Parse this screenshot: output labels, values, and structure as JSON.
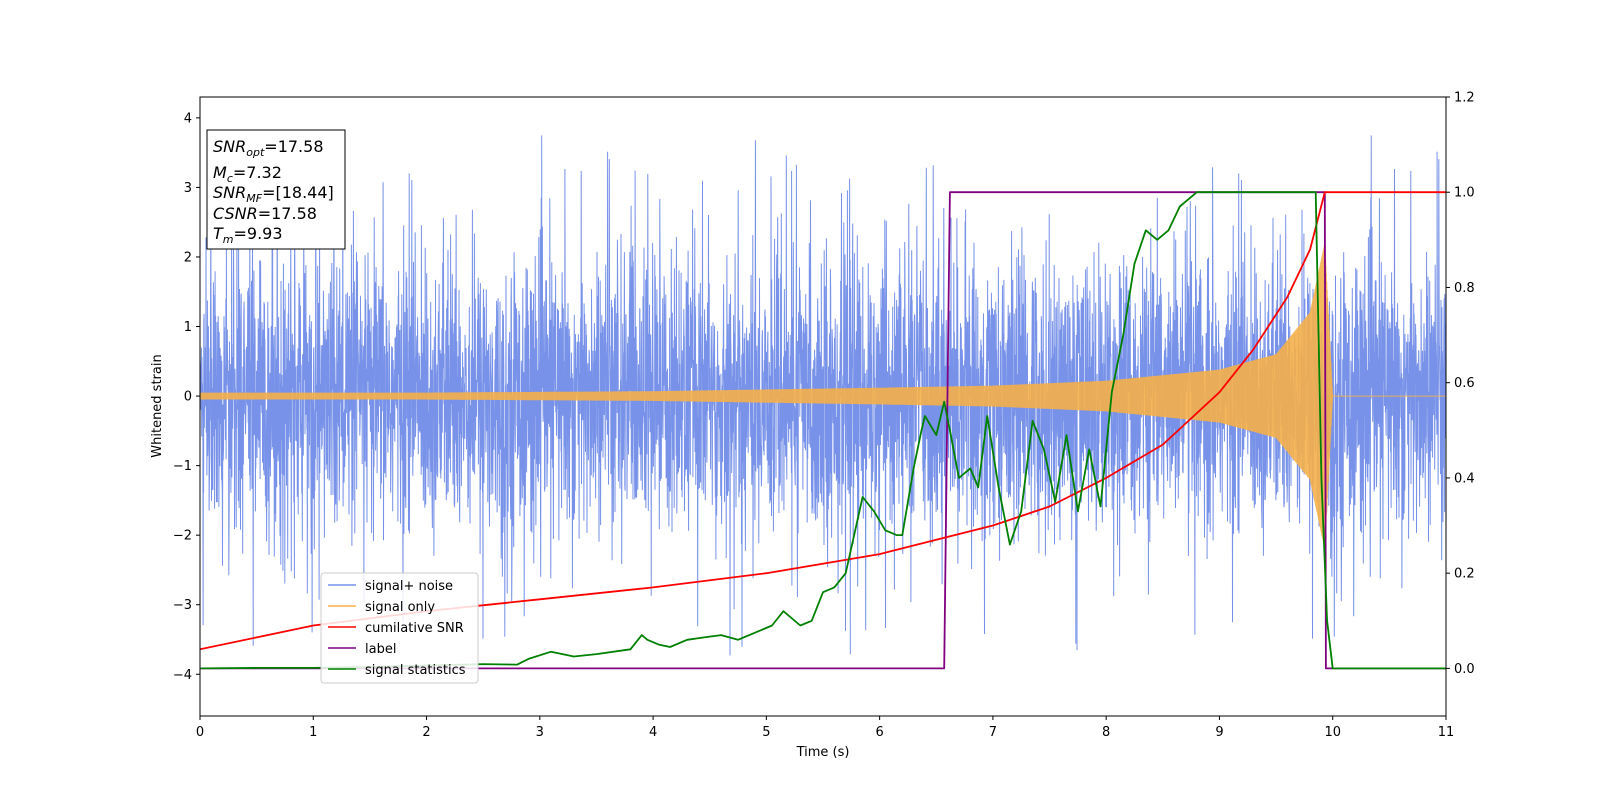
{
  "chart_data": {
    "type": "line",
    "xlabel": "Time (s)",
    "ylabel": "Whitened strain",
    "xlim": [
      0,
      11
    ],
    "ylim_left": [
      -4.6,
      4.3
    ],
    "ylim_right": [
      -0.1,
      1.2
    ],
    "x_ticks": [
      0,
      1,
      2,
      3,
      4,
      5,
      6,
      7,
      8,
      9,
      10,
      11
    ],
    "y_ticks_left": [
      -4,
      -3,
      -2,
      -1,
      0,
      1,
      2,
      3,
      4
    ],
    "y_ticks_right": [
      0.0,
      0.2,
      0.4,
      0.6,
      0.8,
      1.0,
      1.2
    ],
    "legend_position": "lower-left",
    "info_box": {
      "snr_opt": {
        "symbol": "SNR",
        "subscript": "opt",
        "value": "=17.58"
      },
      "mc": {
        "symbol": "M",
        "subscript": "c",
        "value": "=7.32"
      },
      "snr_mf": {
        "symbol": "SNR",
        "subscript": "MF",
        "value": "=[18.44]"
      },
      "csnr": {
        "symbol": "CSNR",
        "value": "=17.58"
      },
      "tm": {
        "symbol": "T",
        "subscript": "m",
        "value": "=9.93"
      }
    },
    "series": [
      {
        "name": "signal+ noise",
        "axis": "left",
        "color": "#7792e8",
        "description_values": {
          "noise_sigma": 1.0,
          "spike_max": 3.9,
          "spike_min": -4.15
        }
      },
      {
        "name": "signal only",
        "axis": "left",
        "color": "#f5b04a",
        "envelope": {
          "x": [
            0,
            2,
            4,
            6,
            7,
            8,
            9,
            9.5,
            9.8,
            9.93,
            10,
            11
          ],
          "amplitude": [
            0.05,
            0.05,
            0.07,
            0.12,
            0.15,
            0.22,
            0.38,
            0.6,
            1.2,
            2.2,
            0,
            0
          ]
        }
      },
      {
        "name": "cumilative SNR",
        "axis": "right",
        "color": "#ff0000",
        "x": [
          0,
          1,
          2,
          3,
          4,
          5,
          6,
          6.5,
          7,
          7.5,
          8,
          8.5,
          9,
          9.3,
          9.6,
          9.8,
          9.93,
          11
        ],
        "y": [
          0.04,
          0.09,
          0.12,
          0.145,
          0.17,
          0.2,
          0.24,
          0.27,
          0.3,
          0.34,
          0.4,
          0.47,
          0.58,
          0.67,
          0.78,
          0.88,
          1.0,
          1.0
        ]
      },
      {
        "name": "label",
        "axis": "right",
        "color": "#800080",
        "x": [
          0,
          6.57,
          6.62,
          9.93,
          9.94,
          11
        ],
        "y": [
          0,
          0,
          1,
          1,
          0,
          0
        ]
      },
      {
        "name": "signal statistics",
        "axis": "right",
        "color": "#008000",
        "x": [
          0,
          0.5,
          1,
          1.5,
          2,
          2.5,
          2.8,
          2.9,
          3.1,
          3.3,
          3.5,
          3.8,
          3.9,
          3.95,
          4.05,
          4.15,
          4.3,
          4.45,
          4.6,
          4.75,
          4.9,
          5.05,
          5.15,
          5.3,
          5.4,
          5.5,
          5.6,
          5.7,
          5.85,
          5.95,
          6.05,
          6.15,
          6.2,
          6.3,
          6.37,
          6.4,
          6.5,
          6.57,
          6.62,
          6.7,
          6.8,
          6.87,
          6.95,
          7.05,
          7.15,
          7.25,
          7.35,
          7.45,
          7.55,
          7.65,
          7.75,
          7.85,
          7.95,
          8.05,
          8.15,
          8.25,
          8.35,
          8.45,
          8.55,
          8.65,
          8.8,
          9.0,
          9.5,
          9.85,
          9.9,
          9.95,
          10.0,
          11.0
        ],
        "y": [
          0,
          0.001,
          0.001,
          0.003,
          0.006,
          0.009,
          0.008,
          0.02,
          0.035,
          0.025,
          0.03,
          0.04,
          0.07,
          0.06,
          0.05,
          0.045,
          0.06,
          0.065,
          0.07,
          0.06,
          0.075,
          0.09,
          0.12,
          0.09,
          0.1,
          0.16,
          0.17,
          0.2,
          0.36,
          0.33,
          0.29,
          0.28,
          0.28,
          0.42,
          0.5,
          0.53,
          0.49,
          0.56,
          0.5,
          0.4,
          0.42,
          0.38,
          0.53,
          0.38,
          0.26,
          0.33,
          0.52,
          0.46,
          0.35,
          0.49,
          0.33,
          0.46,
          0.34,
          0.58,
          0.7,
          0.85,
          0.92,
          0.9,
          0.92,
          0.97,
          1.0,
          1.0,
          1.0,
          1.0,
          0.4,
          0.1,
          0,
          0
        ]
      }
    ]
  }
}
